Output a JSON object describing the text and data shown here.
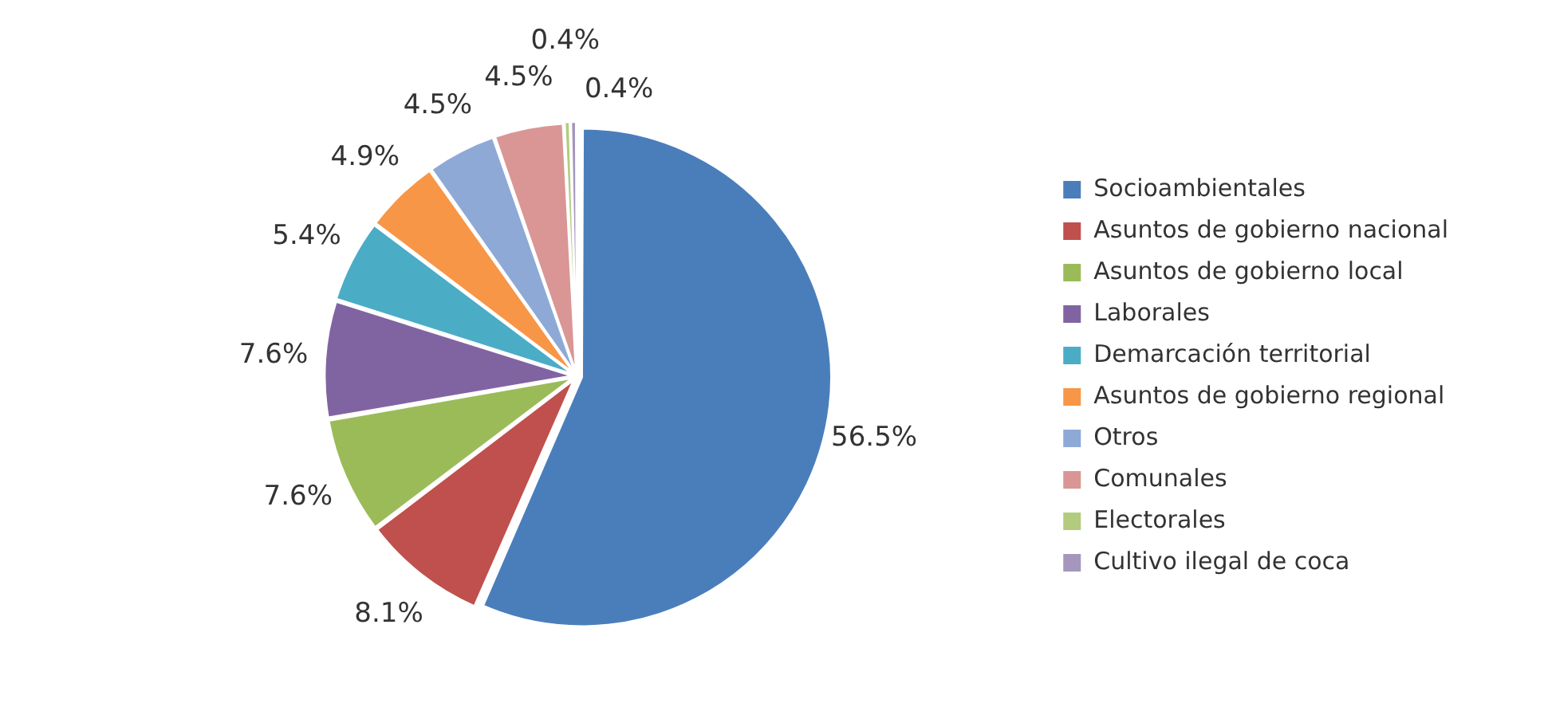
{
  "chart_data": {
    "type": "pie",
    "categories": [
      "Socioambientales",
      "Asuntos de gobierno nacional",
      "Asuntos de gobierno local",
      "Laborales",
      "Demarcación territorial",
      "Asuntos de gobierno regional",
      "Otros",
      "Comunales",
      "Electorales",
      "Cultivo ilegal de coca"
    ],
    "values": [
      56.5,
      8.1,
      7.6,
      7.6,
      5.4,
      4.9,
      4.5,
      4.5,
      0.4,
      0.4
    ],
    "value_labels": [
      "56.5%",
      "8.1%",
      "7.6%",
      "7.6%",
      "5.4%",
      "4.9%",
      "4.5%",
      "4.5%",
      "0.4%",
      "0.4%"
    ],
    "colors": [
      "#4a7ebb",
      "#c0504d",
      "#9bbb59",
      "#8064a2",
      "#4bacc6",
      "#f79646",
      "#8ea9d6",
      "#d99694",
      "#b3cb7c",
      "#a496bc"
    ],
    "legend": "right"
  }
}
